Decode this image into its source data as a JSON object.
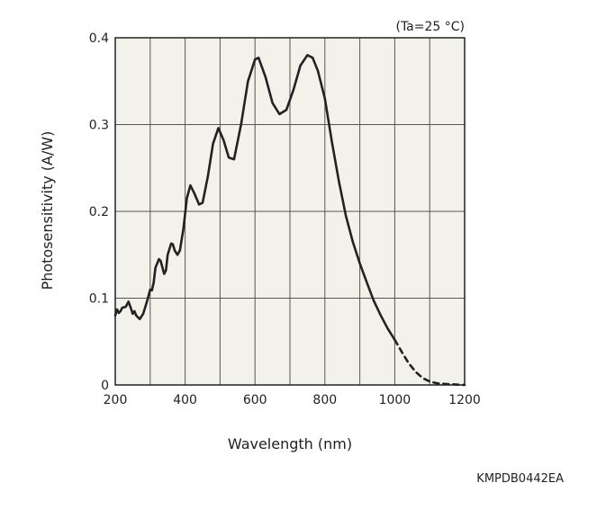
{
  "chart_data": {
    "type": "line",
    "title": "",
    "annotation": "(Ta=25 °C)",
    "xlabel": "Wavelength (nm)",
    "ylabel": "Photosensitivity (A/W)",
    "xlim": [
      200,
      1200
    ],
    "ylim": [
      0,
      0.4
    ],
    "x_ticks": [
      200,
      400,
      600,
      800,
      1000,
      1200
    ],
    "x_tick_labels": [
      "200",
      "400",
      "600",
      "800",
      "1000",
      "1200"
    ],
    "y_ticks": [
      0,
      0.1,
      0.2,
      0.3,
      0.4
    ],
    "y_tick_labels": [
      "0",
      "0.1",
      "0.2",
      "0.3",
      "0.4"
    ],
    "x_grid": [
      300,
      400,
      500,
      600,
      700,
      800,
      900,
      1000,
      1100
    ],
    "y_grid": [
      0.1,
      0.2,
      0.3
    ],
    "grid": true,
    "plot_background": "#f3f2ea",
    "line_color": "#222222",
    "series": [
      {
        "style": "solid",
        "points": [
          [
            200,
            0.08
          ],
          [
            205,
            0.087
          ],
          [
            210,
            0.083
          ],
          [
            215,
            0.085
          ],
          [
            220,
            0.089
          ],
          [
            230,
            0.09
          ],
          [
            238,
            0.096
          ],
          [
            245,
            0.088
          ],
          [
            250,
            0.082
          ],
          [
            255,
            0.085
          ],
          [
            260,
            0.08
          ],
          [
            270,
            0.076
          ],
          [
            280,
            0.082
          ],
          [
            290,
            0.095
          ],
          [
            300,
            0.11
          ],
          [
            305,
            0.109
          ],
          [
            310,
            0.118
          ],
          [
            315,
            0.135
          ],
          [
            325,
            0.145
          ],
          [
            330,
            0.143
          ],
          [
            340,
            0.128
          ],
          [
            345,
            0.132
          ],
          [
            350,
            0.15
          ],
          [
            360,
            0.163
          ],
          [
            365,
            0.162
          ],
          [
            370,
            0.155
          ],
          [
            378,
            0.15
          ],
          [
            385,
            0.155
          ],
          [
            395,
            0.18
          ],
          [
            405,
            0.215
          ],
          [
            415,
            0.23
          ],
          [
            425,
            0.222
          ],
          [
            440,
            0.208
          ],
          [
            450,
            0.21
          ],
          [
            465,
            0.24
          ],
          [
            480,
            0.278
          ],
          [
            495,
            0.296
          ],
          [
            510,
            0.282
          ],
          [
            525,
            0.262
          ],
          [
            540,
            0.26
          ],
          [
            560,
            0.3
          ],
          [
            580,
            0.35
          ],
          [
            600,
            0.375
          ],
          [
            610,
            0.377
          ],
          [
            630,
            0.355
          ],
          [
            650,
            0.325
          ],
          [
            670,
            0.312
          ],
          [
            690,
            0.317
          ],
          [
            710,
            0.34
          ],
          [
            730,
            0.368
          ],
          [
            750,
            0.38
          ],
          [
            765,
            0.377
          ],
          [
            780,
            0.362
          ],
          [
            800,
            0.33
          ],
          [
            820,
            0.28
          ],
          [
            840,
            0.235
          ],
          [
            860,
            0.195
          ],
          [
            880,
            0.165
          ],
          [
            900,
            0.14
          ],
          [
            920,
            0.118
          ],
          [
            940,
            0.097
          ],
          [
            960,
            0.08
          ],
          [
            980,
            0.065
          ],
          [
            1000,
            0.052
          ]
        ]
      },
      {
        "style": "dashed",
        "points": [
          [
            1000,
            0.052
          ],
          [
            1020,
            0.038
          ],
          [
            1040,
            0.025
          ],
          [
            1060,
            0.015
          ],
          [
            1080,
            0.008
          ],
          [
            1100,
            0.004
          ],
          [
            1120,
            0.002
          ],
          [
            1150,
            0.001
          ],
          [
            1200,
            0.0
          ]
        ]
      }
    ]
  },
  "figure_code": "KMPDB0442EA"
}
